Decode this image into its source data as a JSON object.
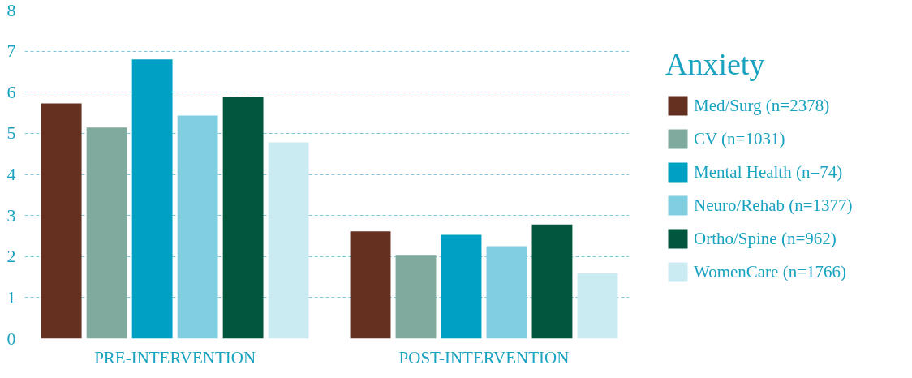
{
  "chart_data": {
    "type": "bar",
    "title": "Anxiety",
    "categories": [
      "PRE-INTERVENTION",
      "POST-INTERVENTION"
    ],
    "series": [
      {
        "name": "Med/Surg (n=2378)",
        "color": "#65301f",
        "values": [
          5.73,
          2.61
        ]
      },
      {
        "name": "CV (n=1031)",
        "color": "#80aa9e",
        "values": [
          5.14,
          2.04
        ]
      },
      {
        "name": "Mental Health (n=74)",
        "color": "#00a0c4",
        "values": [
          6.8,
          2.53
        ]
      },
      {
        "name": "Neuro/Rehab (n=1377)",
        "color": "#80cfe1",
        "values": [
          5.43,
          2.25
        ]
      },
      {
        "name": "Ortho/Spine (n=962)",
        "color": "#00573d",
        "values": [
          5.88,
          2.78
        ]
      },
      {
        "name": "WomenCare (n=1766)",
        "color": "#cbebf2",
        "values": [
          4.78,
          1.59
        ]
      }
    ],
    "ylim": [
      0,
      8
    ],
    "yticks": [
      0,
      1,
      2,
      3,
      4,
      5,
      6,
      7,
      8
    ],
    "grid": "y",
    "legend": "right"
  }
}
